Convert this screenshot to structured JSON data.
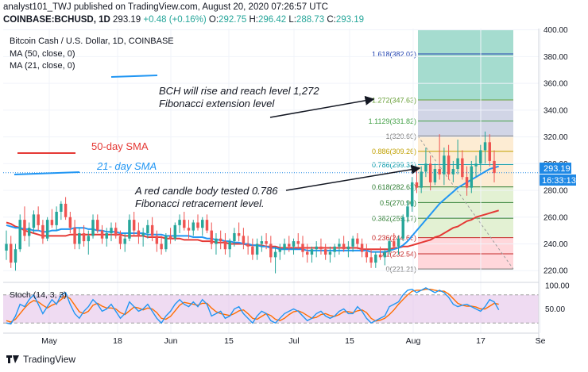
{
  "header": {
    "line1": "analyst101_TWJ published on TradingView.com, August 20, 2020 07:26:57 UTC",
    "symbol": "COINBASE:BCHUSD, 1D",
    "last": "293.19",
    "change": "+0.48 (+0.16%)",
    "o_label": "O:",
    "o_val": "292.75",
    "h_label": "H:",
    "h_val": "296.42",
    "l_label": "L:",
    "l_val": "288.73",
    "c_label": "C:",
    "c_val": "293.19"
  },
  "legend": {
    "title": "Bitcoin Cash / U.S. Dollar, 1D, COINBASE",
    "ma50": "MA (50, close, 0)",
    "ma21": "MA (21, close, 0)"
  },
  "annotations": {
    "sma50": "50-day SMA",
    "sma21": "21- day SMA",
    "bch_line1": "BCH will rise and reach level 1,272",
    "bch_line2": "Fibonacci extension level",
    "red_line1": "A red candle body tested 0.786",
    "red_line2": "Fibonacci retracement level."
  },
  "price_badge": "293.19",
  "time_badge": "16:33:13",
  "stoch_label": "Stoch (14, 3, 3)",
  "footer": {
    "brand": "TradingView"
  },
  "colors": {
    "up": "#26a69a",
    "down": "#ef5350",
    "ma21": "#2196f3",
    "ma50": "#e65100",
    "stoch_k": "#2196f3",
    "stoch_d": "#ff6d00",
    "stoch_bg": "#e1bee7",
    "fib_top": "#26a69a",
    "fib_mid": "#b2dfdb",
    "fib_low": "#ffcdd2"
  },
  "chart_data": {
    "type": "candlestick",
    "title": "Bitcoin Cash / U.S. Dollar, 1D, COINBASE",
    "y_ticks": [
      220.0,
      240.0,
      260.0,
      280.0,
      300.0,
      320.0,
      340.0,
      360.0,
      380.0,
      400.0
    ],
    "y_tick_labels": [
      "220.00",
      "240.00",
      "260.00",
      "280.00",
      "300.00",
      "320.00",
      "340.00",
      "360.00",
      "380.00",
      "400.00"
    ],
    "ylim": [
      213,
      401
    ],
    "x_ticks": [
      "May",
      "18",
      "Jun",
      "15",
      "Jul",
      "15",
      "Aug",
      "17",
      "Se"
    ],
    "fib_levels": [
      {
        "label": "1.618(382.02)",
        "value": 382.02
      },
      {
        "label": "1.272(347.63)",
        "value": 347.63
      },
      {
        "label": "1.1129(331.82)",
        "value": 331.82
      },
      {
        "label": "1(320.60)",
        "value": 320.6
      },
      {
        "label": "0.886(309.26)",
        "value": 309.26
      },
      {
        "label": "0.786(299.33)",
        "value": 299.33
      },
      {
        "label": "0.618(282.63)",
        "value": 282.63
      },
      {
        "label": "0.5(270.90)",
        "value": 270.9
      },
      {
        "label": "0.382(259.17)",
        "value": 259.17
      },
      {
        "label": "0.236(244.66)",
        "value": 244.66
      },
      {
        "label": "0.1(232.54)",
        "value": 232.54
      },
      {
        "label": "0(221.21)",
        "value": 221.21
      }
    ],
    "candles": [
      [
        235,
        250,
        228,
        240
      ],
      [
        240,
        246,
        222,
        226
      ],
      [
        226,
        240,
        220,
        236
      ],
      [
        236,
        262,
        234,
        258
      ],
      [
        258,
        268,
        242,
        246
      ],
      [
        246,
        256,
        238,
        252
      ],
      [
        252,
        265,
        248,
        262
      ],
      [
        262,
        268,
        250,
        254
      ],
      [
        254,
        258,
        240,
        244
      ],
      [
        244,
        260,
        242,
        258
      ],
      [
        258,
        266,
        252,
        254
      ],
      [
        254,
        268,
        250,
        264
      ],
      [
        264,
        272,
        258,
        270
      ],
      [
        270,
        275,
        258,
        260
      ],
      [
        260,
        264,
        248,
        252
      ],
      [
        252,
        258,
        236,
        240
      ],
      [
        240,
        252,
        236,
        248
      ],
      [
        248,
        254,
        238,
        242
      ],
      [
        242,
        250,
        232,
        246
      ],
      [
        246,
        262,
        244,
        258
      ],
      [
        258,
        262,
        248,
        250
      ],
      [
        250,
        254,
        240,
        244
      ],
      [
        244,
        252,
        238,
        248
      ],
      [
        248,
        256,
        242,
        252
      ],
      [
        252,
        256,
        244,
        246
      ],
      [
        246,
        250,
        236,
        240
      ],
      [
        240,
        248,
        234,
        244
      ],
      [
        244,
        262,
        242,
        258
      ],
      [
        258,
        264,
        246,
        250
      ],
      [
        250,
        256,
        240,
        246
      ],
      [
        246,
        252,
        238,
        248
      ],
      [
        248,
        258,
        244,
        254
      ],
      [
        254,
        260,
        242,
        246
      ],
      [
        246,
        250,
        234,
        240
      ],
      [
        240,
        246,
        232,
        236
      ],
      [
        236,
        248,
        234,
        246
      ],
      [
        246,
        252,
        240,
        244
      ],
      [
        244,
        256,
        242,
        254
      ],
      [
        254,
        262,
        248,
        258
      ],
      [
        258,
        264,
        250,
        252
      ],
      [
        252,
        258,
        244,
        250
      ],
      [
        250,
        258,
        246,
        256
      ],
      [
        256,
        262,
        250,
        252
      ],
      [
        252,
        260,
        246,
        258
      ],
      [
        258,
        262,
        248,
        250
      ],
      [
        250,
        256,
        236,
        240
      ],
      [
        240,
        248,
        232,
        244
      ],
      [
        244,
        250,
        236,
        242
      ],
      [
        242,
        248,
        232,
        236
      ],
      [
        236,
        244,
        230,
        242
      ],
      [
        242,
        252,
        238,
        248
      ],
      [
        248,
        256,
        242,
        246
      ],
      [
        246,
        252,
        236,
        240
      ],
      [
        240,
        246,
        232,
        238
      ],
      [
        238,
        244,
        228,
        232
      ],
      [
        232,
        244,
        228,
        240
      ],
      [
        240,
        246,
        234,
        242
      ],
      [
        242,
        248,
        236,
        240
      ],
      [
        240,
        246,
        226,
        230
      ],
      [
        230,
        238,
        218,
        234
      ],
      [
        234,
        240,
        228,
        236
      ],
      [
        236,
        244,
        232,
        240
      ],
      [
        240,
        246,
        234,
        238
      ],
      [
        238,
        244,
        232,
        242
      ],
      [
        242,
        248,
        236,
        240
      ],
      [
        240,
        246,
        230,
        234
      ],
      [
        234,
        240,
        226,
        232
      ],
      [
        232,
        238,
        226,
        236
      ],
      [
        236,
        242,
        230,
        238
      ],
      [
        238,
        244,
        232,
        236
      ],
      [
        236,
        240,
        228,
        232
      ],
      [
        232,
        238,
        226,
        234
      ],
      [
        234,
        240,
        230,
        238
      ],
      [
        238,
        244,
        232,
        240
      ],
      [
        240,
        246,
        234,
        236
      ],
      [
        236,
        242,
        230,
        238
      ],
      [
        238,
        246,
        234,
        244
      ],
      [
        244,
        248,
        236,
        240
      ],
      [
        240,
        244,
        230,
        234
      ],
      [
        234,
        240,
        226,
        230
      ],
      [
        230,
        236,
        222,
        226
      ],
      [
        226,
        234,
        222,
        232
      ],
      [
        232,
        238,
        228,
        230
      ],
      [
        230,
        236,
        224,
        234
      ],
      [
        234,
        244,
        232,
        242
      ],
      [
        242,
        248,
        236,
        238
      ],
      [
        238,
        246,
        232,
        244
      ],
      [
        244,
        262,
        242,
        260
      ],
      [
        260,
        272,
        256,
        268
      ],
      [
        268,
        290,
        264,
        286
      ],
      [
        286,
        296,
        278,
        282
      ],
      [
        282,
        298,
        278,
        294
      ],
      [
        294,
        312,
        290,
        300
      ],
      [
        300,
        306,
        280,
        286
      ],
      [
        286,
        300,
        284,
        296
      ],
      [
        296,
        322,
        288,
        292
      ],
      [
        292,
        312,
        284,
        306
      ],
      [
        306,
        314,
        288,
        292
      ],
      [
        292,
        302,
        286,
        296
      ],
      [
        296,
        318,
        292,
        304
      ],
      [
        304,
        310,
        288,
        290
      ],
      [
        290,
        298,
        276,
        282
      ],
      [
        282,
        302,
        278,
        298
      ],
      [
        298,
        306,
        290,
        300
      ],
      [
        300,
        314,
        294,
        310
      ],
      [
        310,
        324,
        300,
        316
      ],
      [
        316,
        322,
        298,
        302
      ],
      [
        302,
        310,
        286,
        293
      ]
    ],
    "ma21": [
      254,
      253,
      252,
      252,
      251,
      251,
      250,
      250,
      249,
      249,
      250,
      250,
      251,
      251,
      251,
      252,
      252,
      252,
      251,
      251,
      250,
      250,
      249,
      249,
      249,
      248,
      248,
      248,
      248,
      248,
      248,
      247,
      247,
      247,
      247,
      246,
      246,
      246,
      246,
      246,
      246,
      245,
      245,
      245,
      244,
      244,
      243,
      243,
      242,
      242,
      241,
      241,
      240,
      240,
      239,
      239,
      238,
      238,
      237,
      237,
      236,
      236,
      236,
      236,
      236,
      236,
      235,
      235,
      235,
      235,
      235,
      235,
      235,
      235,
      235,
      235,
      235,
      235,
      235,
      235,
      234,
      234,
      234,
      234,
      235,
      236,
      237,
      239,
      242,
      246,
      250,
      254,
      258,
      262,
      266,
      270,
      273,
      276,
      279,
      282,
      284,
      286,
      288,
      290,
      292,
      294,
      296,
      297,
      298
    ],
    "ma50": [
      256,
      255,
      253,
      252,
      250,
      249,
      248,
      247,
      246,
      246,
      246,
      246,
      246,
      246,
      247,
      247,
      247,
      247,
      247,
      247,
      247,
      247,
      247,
      247,
      247,
      247,
      246,
      246,
      246,
      246,
      246,
      245,
      245,
      245,
      245,
      244,
      244,
      244,
      244,
      243,
      243,
      243,
      243,
      242,
      242,
      242,
      241,
      241,
      241,
      240,
      240,
      240,
      240,
      239,
      239,
      239,
      239,
      238,
      238,
      238,
      237,
      237,
      237,
      237,
      237,
      237,
      237,
      237,
      237,
      237,
      237,
      237,
      237,
      237,
      237,
      237,
      237,
      237,
      236,
      236,
      236,
      236,
      236,
      236,
      236,
      237,
      237,
      238,
      238,
      239,
      240,
      241,
      242,
      243,
      245,
      246,
      248,
      250,
      252,
      253,
      255,
      257,
      258,
      260,
      261,
      262,
      263,
      264,
      265
    ],
    "stoch_k": [
      20,
      18,
      35,
      60,
      55,
      70,
      80,
      60,
      40,
      55,
      70,
      60,
      80,
      85,
      60,
      40,
      30,
      45,
      55,
      70,
      60,
      45,
      50,
      60,
      45,
      30,
      40,
      65,
      55,
      45,
      50,
      60,
      45,
      30,
      20,
      35,
      45,
      60,
      70,
      60,
      55,
      65,
      55,
      70,
      60,
      35,
      40,
      45,
      30,
      35,
      50,
      55,
      40,
      30,
      20,
      35,
      45,
      40,
      25,
      20,
      30,
      40,
      45,
      50,
      45,
      35,
      25,
      30,
      40,
      45,
      35,
      30,
      35,
      45,
      50,
      40,
      40,
      55,
      45,
      30,
      20,
      25,
      30,
      35,
      55,
      60,
      65,
      80,
      90,
      92,
      85,
      90,
      95,
      90,
      85,
      90,
      85,
      75,
      60,
      55,
      58,
      60,
      55,
      50,
      45,
      55,
      70,
      65,
      48
    ],
    "stoch_d": [
      25,
      22,
      28,
      40,
      52,
      62,
      68,
      65,
      58,
      52,
      58,
      62,
      70,
      78,
      72,
      58,
      44,
      40,
      45,
      58,
      62,
      56,
      52,
      52,
      50,
      42,
      38,
      46,
      54,
      52,
      48,
      52,
      50,
      42,
      30,
      28,
      34,
      46,
      58,
      64,
      62,
      60,
      58,
      62,
      62,
      52,
      44,
      40,
      38,
      36,
      40,
      46,
      48,
      40,
      30,
      28,
      34,
      40,
      36,
      28,
      25,
      30,
      38,
      44,
      46,
      42,
      36,
      30,
      32,
      38,
      40,
      36,
      34,
      38,
      44,
      44,
      42,
      46,
      48,
      42,
      30,
      24,
      26,
      30,
      38,
      48,
      60,
      70,
      80,
      88,
      90,
      90,
      92,
      92,
      90,
      88,
      88,
      82,
      72,
      62,
      58,
      56,
      56,
      54,
      50,
      50,
      56,
      62,
      60
    ],
    "stoch_ticks": [
      50.0,
      100.0
    ],
    "stoch_tick_labels": [
      "50.00",
      "100.00"
    ]
  }
}
